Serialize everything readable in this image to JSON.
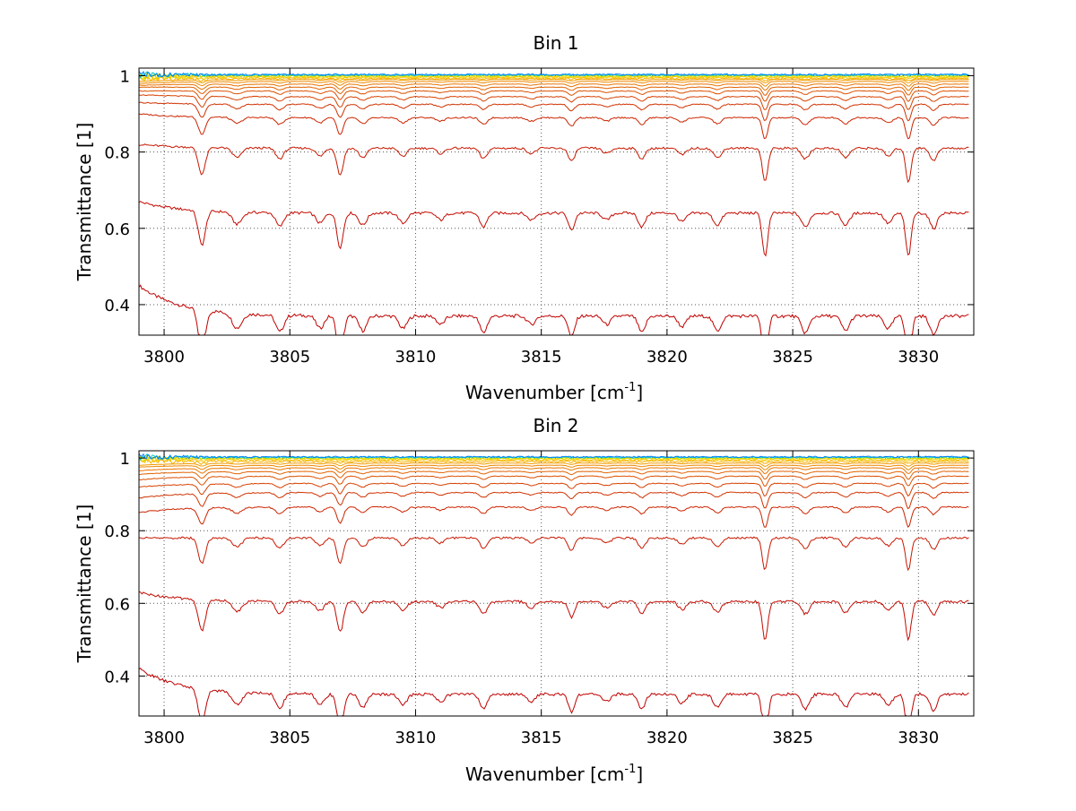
{
  "chart_data": [
    {
      "type": "line",
      "title": "Bin 1",
      "xlabel": "Wavenumber [cm",
      "xlabel_sup": "-1",
      "xlabel_close": "]",
      "ylabel": "Transmittance [1]",
      "xlim": [
        3799,
        3832.2
      ],
      "ylim": [
        0.32,
        1.02
      ],
      "xticks": [
        3800,
        3805,
        3810,
        3815,
        3820,
        3825,
        3830
      ],
      "yticks": [
        0.4,
        0.6,
        0.8,
        1
      ],
      "ytick_labels": [
        "0.4",
        "0.6",
        "0.8",
        "1"
      ],
      "grid": true,
      "line_series": [
        {
          "baseline": 0.37,
          "depth": 0.11,
          "start": 0.45,
          "color": "#c00000"
        },
        {
          "baseline": 0.64,
          "depth": 0.09,
          "start": 0.67,
          "color": "#c40a00"
        },
        {
          "baseline": 0.81,
          "depth": 0.07,
          "start": 0.82,
          "color": "#c81800"
        },
        {
          "baseline": 0.89,
          "depth": 0.045,
          "start": 0.9,
          "color": "#cc2400"
        },
        {
          "baseline": 0.925,
          "depth": 0.035,
          "start": 0.93,
          "color": "#d03200"
        },
        {
          "baseline": 0.945,
          "depth": 0.028,
          "start": 0.95,
          "color": "#d64000"
        },
        {
          "baseline": 0.96,
          "depth": 0.022,
          "start": 0.96,
          "color": "#dc5000"
        },
        {
          "baseline": 0.97,
          "depth": 0.017,
          "start": 0.97,
          "color": "#e26200"
        },
        {
          "baseline": 0.978,
          "depth": 0.013,
          "start": 0.975,
          "color": "#e87400"
        },
        {
          "baseline": 0.985,
          "depth": 0.01,
          "start": 0.98,
          "color": "#ee8800"
        },
        {
          "baseline": 0.99,
          "depth": 0.007,
          "start": 0.985,
          "color": "#f29c00"
        },
        {
          "baseline": 0.993,
          "depth": 0.005,
          "start": 0.99,
          "color": "#f6b000"
        },
        {
          "baseline": 0.996,
          "depth": 0.003,
          "start": 0.995,
          "color": "#f8c400"
        },
        {
          "baseline": 0.998,
          "depth": 0.002,
          "start": 0.998,
          "color": "#f2d800"
        },
        {
          "baseline": 1.0,
          "depth": 0.001,
          "start": 1.0,
          "color": "#c8e000"
        },
        {
          "baseline": 1.002,
          "depth": 0.0,
          "start": 1.002,
          "color": "#00c8c8"
        },
        {
          "baseline": 1.003,
          "depth": 0.0,
          "start": 1.003,
          "color": "#0080ff"
        }
      ]
    },
    {
      "type": "line",
      "title": "Bin 2",
      "xlabel": "Wavenumber [cm",
      "xlabel_sup": "-1",
      "xlabel_close": "]",
      "ylabel": "Transmittance [1]",
      "xlim": [
        3799,
        3832.2
      ],
      "ylim": [
        0.29,
        1.02
      ],
      "xticks": [
        3800,
        3805,
        3810,
        3815,
        3820,
        3825,
        3830
      ],
      "yticks": [
        0.4,
        0.6,
        0.8,
        1
      ],
      "ytick_labels": [
        "0.4",
        "0.6",
        "0.8",
        "1"
      ],
      "grid": true,
      "line_series": [
        {
          "baseline": 0.35,
          "depth": 0.1,
          "start": 0.42,
          "color": "#c00000"
        },
        {
          "baseline": 0.605,
          "depth": 0.085,
          "start": 0.63,
          "color": "#c40a00"
        },
        {
          "baseline": 0.78,
          "depth": 0.07,
          "start": 0.78,
          "color": "#c81800"
        },
        {
          "baseline": 0.865,
          "depth": 0.045,
          "start": 0.85,
          "color": "#cc2400"
        },
        {
          "baseline": 0.905,
          "depth": 0.035,
          "start": 0.89,
          "color": "#d03200"
        },
        {
          "baseline": 0.93,
          "depth": 0.028,
          "start": 0.92,
          "color": "#d64000"
        },
        {
          "baseline": 0.95,
          "depth": 0.022,
          "start": 0.94,
          "color": "#dc5000"
        },
        {
          "baseline": 0.963,
          "depth": 0.017,
          "start": 0.955,
          "color": "#e26200"
        },
        {
          "baseline": 0.973,
          "depth": 0.013,
          "start": 0.965,
          "color": "#e87400"
        },
        {
          "baseline": 0.98,
          "depth": 0.01,
          "start": 0.975,
          "color": "#ee8800"
        },
        {
          "baseline": 0.986,
          "depth": 0.007,
          "start": 0.98,
          "color": "#f29c00"
        },
        {
          "baseline": 0.991,
          "depth": 0.005,
          "start": 0.99,
          "color": "#f6b000"
        },
        {
          "baseline": 0.995,
          "depth": 0.003,
          "start": 0.995,
          "color": "#f8c400"
        },
        {
          "baseline": 0.998,
          "depth": 0.002,
          "start": 0.998,
          "color": "#f2d800"
        },
        {
          "baseline": 1.0,
          "depth": 0.001,
          "start": 1.0,
          "color": "#c8e000"
        },
        {
          "baseline": 1.002,
          "depth": 0.0,
          "start": 1.002,
          "color": "#00c8c8"
        },
        {
          "baseline": 1.003,
          "depth": 0.0,
          "start": 1.003,
          "color": "#0080ff"
        }
      ]
    }
  ],
  "absorption_lines": [
    {
      "x": 3801.5,
      "strength": 1.0,
      "width": 0.09
    },
    {
      "x": 3802.9,
      "strength": 0.35,
      "width": 0.12
    },
    {
      "x": 3804.6,
      "strength": 0.4,
      "width": 0.1
    },
    {
      "x": 3806.2,
      "strength": 0.3,
      "width": 0.1
    },
    {
      "x": 3807.0,
      "strength": 1.0,
      "width": 0.08
    },
    {
      "x": 3807.9,
      "strength": 0.35,
      "width": 0.1
    },
    {
      "x": 3809.5,
      "strength": 0.3,
      "width": 0.1
    },
    {
      "x": 3811.0,
      "strength": 0.2,
      "width": 0.1
    },
    {
      "x": 3812.7,
      "strength": 0.4,
      "width": 0.09
    },
    {
      "x": 3814.6,
      "strength": 0.2,
      "width": 0.1
    },
    {
      "x": 3816.2,
      "strength": 0.5,
      "width": 0.08
    },
    {
      "x": 3817.6,
      "strength": 0.2,
      "width": 0.1
    },
    {
      "x": 3819.0,
      "strength": 0.4,
      "width": 0.09
    },
    {
      "x": 3820.6,
      "strength": 0.25,
      "width": 0.1
    },
    {
      "x": 3822.0,
      "strength": 0.35,
      "width": 0.1
    },
    {
      "x": 3823.9,
      "strength": 1.25,
      "width": 0.07
    },
    {
      "x": 3825.5,
      "strength": 0.4,
      "width": 0.1
    },
    {
      "x": 3827.1,
      "strength": 0.35,
      "width": 0.1
    },
    {
      "x": 3828.8,
      "strength": 0.3,
      "width": 0.1
    },
    {
      "x": 3829.6,
      "strength": 1.25,
      "width": 0.07
    },
    {
      "x": 3830.6,
      "strength": 0.45,
      "width": 0.09
    }
  ]
}
